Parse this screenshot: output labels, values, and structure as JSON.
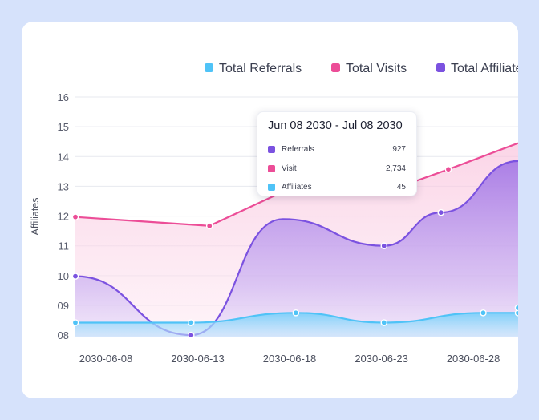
{
  "chart_data": {
    "type": "area",
    "ylabel": "Affiliates",
    "y_ticks": [
      "16",
      "15",
      "14",
      "13",
      "12",
      "11",
      "10",
      "09",
      "08"
    ],
    "ylim": [
      7.95,
      16
    ],
    "x_ticks": [
      {
        "label": "2030-06-08",
        "x": 0
      },
      {
        "label": "2030-06-13",
        "x": 5
      },
      {
        "label": "2030-06-18",
        "x": 10
      },
      {
        "label": "2030-06-23",
        "x": 15
      },
      {
        "label": "2030-06-28",
        "x": 20
      }
    ],
    "xlim": [
      0,
      24.1
    ],
    "legend_position": "top",
    "grid": true,
    "series": [
      {
        "name": "Total Referrals",
        "color": "#4fc3f7",
        "smooth": true,
        "x": [
          0,
          6.3,
          12,
          16.8,
          22.2,
          24.1
        ],
        "y": [
          8.42,
          8.42,
          8.75,
          8.42,
          8.75,
          8.75
        ],
        "markers_x": [
          0,
          6.3,
          12,
          16.8,
          22.2,
          24.1,
          24.1
        ],
        "markers_y": [
          8.42,
          8.42,
          8.75,
          8.42,
          8.75,
          8.75,
          8.92
        ]
      },
      {
        "name": "Total Visits",
        "color": "#ec4d97",
        "smooth": false,
        "x": [
          0,
          7.3,
          12.7,
          16.8,
          20.3,
          24.1
        ],
        "y": [
          11.97,
          11.67,
          13.22,
          12.8,
          13.57,
          14.45
        ],
        "markers_x": [
          0,
          7.3,
          12.7,
          16.8,
          20.3
        ],
        "markers_y": [
          11.97,
          11.67,
          13.22,
          12.8,
          13.57
        ]
      },
      {
        "name": "Total Affiliates",
        "color": "#7b52e0",
        "smooth": true,
        "x": [
          0,
          6.3,
          11.3,
          16.8,
          19.9,
          24.1
        ],
        "y": [
          9.98,
          8.0,
          11.9,
          11.0,
          12.12,
          13.85
        ],
        "markers_x": [
          0,
          6.3,
          16.8,
          19.9
        ],
        "markers_y": [
          9.98,
          8.0,
          11.0,
          12.12
        ]
      }
    ],
    "tooltip": {
      "title": "Jun 08 2030 - Jul 08 2030",
      "rows": [
        {
          "label": "Referrals",
          "value": "927",
          "color": "#7b52e0"
        },
        {
          "label": "Visit",
          "value": "2,734",
          "color": "#ec4d97"
        },
        {
          "label": "Affiliates",
          "value": "45",
          "color": "#4fc3f7"
        }
      ]
    }
  }
}
